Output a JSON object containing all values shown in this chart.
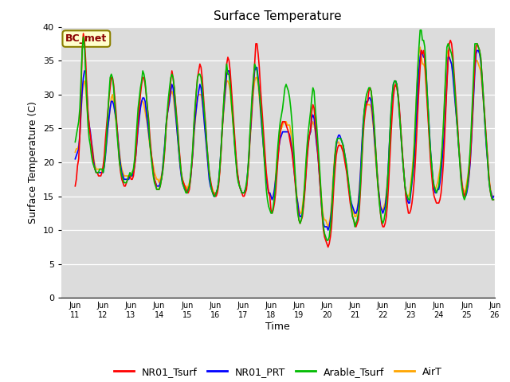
{
  "title": "Surface Temperature",
  "xlabel": "Time",
  "ylabel": "Surface Temperature (C)",
  "annotation": "BC_met",
  "ylim": [
    0,
    40
  ],
  "yticks": [
    0,
    5,
    10,
    15,
    20,
    25,
    30,
    35,
    40
  ],
  "x_labels": [
    "Jun\n11",
    "Jun\n12",
    "Jun\n13",
    "Jun\n14",
    "Jun\n15",
    "Jun\n16",
    "Jun\n17",
    "Jun\n18",
    "Jun\n19",
    "Jun\n20",
    "Jun\n21",
    "Jun\n22",
    "Jun\n23",
    "Jun\n24",
    "Jun\n25",
    "Jun\n26"
  ],
  "x_labels_split": [
    "Jun",
    "11Jun",
    "12Jun",
    "13Jun",
    "14Jun",
    "15Jun",
    "16Jun",
    "17Jun",
    "18Jun",
    "19Jun",
    "20Jun",
    "21Jun",
    "22Jun",
    "23Jun",
    "24Jun",
    "25Jun",
    "26"
  ],
  "series_colors": {
    "NR01_Tsurf": "#ff0000",
    "NR01_PRT": "#0000ff",
    "Arable_Tsurf": "#00bb00",
    "AirT": "#ffa500"
  },
  "bg_color": "#dcdcdc",
  "fig_bg": "#ffffff",
  "line_width": 1.2,
  "NR01_Tsurf": [
    16.5,
    17.5,
    19.5,
    20.5,
    24.0,
    30.5,
    36.5,
    39.0,
    38.0,
    35.0,
    31.0,
    27.5,
    25.5,
    24.0,
    22.5,
    21.0,
    19.5,
    19.0,
    18.5,
    18.5,
    18.0,
    18.0,
    18.0,
    18.5,
    19.5,
    21.0,
    23.5,
    25.5,
    27.5,
    29.5,
    31.0,
    32.5,
    32.5,
    31.5,
    29.5,
    27.5,
    25.0,
    22.5,
    20.0,
    18.5,
    17.5,
    17.0,
    16.5,
    16.5,
    17.0,
    17.5,
    18.0,
    18.0,
    17.5,
    17.5,
    18.0,
    19.5,
    21.0,
    23.5,
    26.0,
    28.0,
    30.0,
    31.5,
    32.5,
    32.5,
    31.5,
    30.0,
    28.0,
    26.5,
    24.0,
    22.0,
    20.0,
    18.5,
    17.5,
    17.0,
    16.0,
    16.0,
    16.0,
    16.5,
    17.5,
    18.5,
    20.0,
    22.0,
    25.0,
    27.0,
    28.5,
    30.0,
    32.0,
    33.5,
    32.5,
    31.0,
    29.0,
    27.0,
    25.0,
    22.5,
    20.5,
    18.5,
    17.5,
    17.0,
    16.5,
    16.0,
    15.5,
    15.5,
    16.0,
    17.5,
    19.5,
    22.0,
    25.5,
    28.0,
    30.5,
    32.5,
    33.5,
    34.5,
    34.0,
    32.5,
    30.0,
    27.5,
    25.5,
    22.5,
    20.5,
    18.5,
    17.5,
    16.5,
    15.5,
    15.5,
    15.0,
    15.0,
    15.5,
    16.5,
    18.5,
    21.0,
    24.5,
    27.5,
    30.0,
    32.5,
    34.5,
    35.5,
    35.0,
    33.5,
    31.0,
    28.5,
    26.0,
    23.5,
    21.0,
    19.0,
    17.5,
    16.5,
    16.0,
    15.5,
    15.0,
    15.0,
    15.5,
    16.0,
    18.0,
    20.5,
    24.0,
    26.5,
    29.5,
    32.0,
    34.5,
    37.5,
    37.5,
    36.0,
    34.0,
    31.0,
    28.5,
    26.0,
    23.5,
    21.0,
    18.5,
    17.0,
    15.5,
    15.0,
    13.0,
    12.5,
    13.0,
    14.0,
    15.5,
    18.0,
    20.5,
    22.5,
    24.5,
    25.5,
    26.0,
    26.0,
    26.0,
    25.5,
    25.0,
    24.5,
    23.5,
    22.5,
    21.5,
    20.0,
    18.5,
    16.5,
    14.5,
    13.0,
    11.5,
    11.0,
    11.5,
    12.0,
    13.5,
    15.5,
    18.0,
    20.5,
    22.5,
    24.0,
    25.0,
    27.5,
    28.5,
    28.0,
    26.0,
    24.0,
    22.0,
    19.5,
    17.0,
    14.5,
    12.0,
    10.0,
    9.0,
    8.5,
    8.0,
    7.5,
    8.0,
    9.0,
    10.5,
    13.5,
    16.5,
    19.0,
    21.0,
    22.0,
    22.5,
    22.5,
    22.5,
    22.0,
    21.5,
    20.5,
    19.5,
    18.5,
    17.0,
    15.5,
    14.0,
    13.0,
    12.0,
    11.5,
    11.0,
    10.5,
    11.0,
    11.5,
    13.5,
    16.5,
    20.0,
    23.5,
    26.0,
    27.5,
    28.5,
    29.0,
    30.5,
    31.0,
    30.5,
    28.5,
    26.5,
    24.0,
    21.5,
    19.0,
    16.5,
    14.5,
    12.5,
    11.0,
    10.5,
    10.5,
    11.0,
    12.0,
    14.0,
    17.0,
    20.5,
    24.0,
    27.0,
    29.5,
    31.0,
    31.5,
    31.0,
    30.0,
    28.5,
    26.0,
    23.5,
    21.0,
    18.5,
    16.5,
    14.5,
    13.5,
    12.5,
    12.5,
    13.0,
    14.0,
    15.5,
    17.5,
    20.5,
    24.0,
    27.5,
    31.0,
    34.0,
    36.5,
    36.0,
    36.5,
    35.0,
    32.0,
    29.0,
    26.0,
    23.0,
    20.0,
    18.0,
    16.0,
    15.0,
    14.5,
    14.0,
    14.0,
    14.0,
    14.5,
    15.5,
    17.5,
    20.0,
    23.5,
    27.5,
    31.5,
    35.0,
    37.5,
    38.0,
    37.5,
    36.0,
    33.5,
    31.0,
    28.5,
    26.0,
    23.0,
    20.5,
    18.0,
    16.5,
    15.5,
    15.0,
    15.5,
    16.0,
    17.0,
    18.5,
    20.5,
    23.5,
    27.0,
    31.0,
    34.5,
    37.0,
    37.5,
    37.0,
    36.5,
    35.5,
    33.0,
    30.5,
    28.0,
    25.5,
    23.0,
    20.5,
    18.0,
    16.0,
    15.0,
    14.5,
    14.5
  ],
  "NR01_PRT": [
    20.5,
    21.0,
    21.5,
    22.0,
    24.0,
    27.5,
    30.5,
    32.5,
    33.5,
    33.5,
    30.5,
    27.0,
    25.5,
    24.5,
    23.0,
    21.5,
    20.0,
    19.0,
    18.5,
    18.5,
    18.5,
    18.5,
    18.5,
    18.5,
    18.5,
    19.5,
    21.0,
    23.0,
    25.0,
    26.5,
    28.0,
    29.0,
    29.0,
    28.5,
    27.5,
    26.5,
    25.0,
    23.0,
    21.0,
    19.5,
    18.5,
    18.0,
    17.5,
    17.5,
    17.5,
    17.5,
    17.5,
    18.0,
    18.0,
    18.0,
    18.5,
    19.5,
    21.0,
    23.0,
    25.0,
    26.5,
    28.0,
    29.0,
    29.5,
    29.5,
    29.0,
    27.5,
    26.0,
    24.5,
    23.0,
    21.5,
    20.0,
    18.5,
    17.5,
    17.0,
    16.5,
    16.5,
    16.5,
    17.0,
    17.5,
    19.0,
    21.0,
    23.0,
    25.5,
    27.0,
    28.0,
    29.0,
    30.5,
    31.5,
    31.0,
    29.5,
    27.5,
    25.5,
    23.5,
    21.5,
    19.5,
    18.0,
    17.0,
    16.5,
    16.0,
    16.0,
    15.5,
    16.0,
    16.5,
    17.5,
    19.5,
    21.5,
    24.5,
    26.5,
    28.0,
    29.5,
    30.5,
    31.5,
    31.0,
    29.5,
    27.5,
    25.5,
    23.5,
    21.5,
    19.5,
    17.5,
    16.5,
    16.0,
    15.5,
    15.0,
    15.0,
    15.5,
    16.0,
    17.0,
    19.0,
    21.5,
    24.5,
    27.0,
    29.0,
    31.0,
    33.0,
    33.5,
    33.5,
    32.0,
    30.0,
    27.5,
    25.0,
    22.5,
    20.5,
    18.5,
    17.5,
    16.5,
    16.0,
    15.5,
    15.5,
    15.5,
    16.0,
    16.5,
    18.5,
    20.5,
    23.5,
    26.0,
    29.0,
    31.5,
    33.5,
    34.0,
    34.0,
    32.5,
    30.5,
    28.0,
    25.5,
    23.5,
    21.5,
    19.5,
    17.5,
    16.5,
    15.5,
    15.5,
    15.0,
    14.5,
    15.0,
    16.0,
    17.5,
    19.0,
    21.0,
    22.5,
    23.5,
    24.0,
    24.5,
    24.5,
    24.5,
    24.5,
    24.5,
    24.5,
    24.0,
    23.0,
    22.0,
    20.5,
    18.5,
    17.0,
    15.0,
    14.0,
    12.5,
    12.0,
    12.0,
    12.5,
    14.0,
    16.0,
    18.5,
    21.0,
    23.0,
    24.0,
    24.5,
    26.5,
    27.0,
    26.5,
    25.0,
    23.0,
    21.5,
    19.5,
    17.0,
    14.5,
    12.5,
    11.0,
    10.5,
    10.5,
    10.5,
    10.0,
    10.5,
    11.5,
    13.0,
    15.5,
    18.5,
    21.0,
    22.5,
    23.5,
    24.0,
    24.0,
    23.5,
    23.0,
    22.5,
    21.5,
    20.5,
    19.0,
    17.5,
    16.0,
    15.0,
    14.0,
    13.5,
    13.0,
    12.5,
    12.5,
    13.0,
    14.0,
    16.0,
    19.0,
    22.5,
    25.5,
    27.5,
    28.5,
    29.0,
    29.0,
    29.5,
    29.5,
    29.0,
    27.5,
    25.5,
    23.0,
    21.0,
    18.5,
    16.5,
    15.0,
    13.5,
    13.0,
    12.5,
    13.0,
    13.5,
    15.0,
    17.0,
    20.5,
    24.0,
    27.0,
    29.5,
    31.5,
    32.0,
    32.0,
    31.5,
    30.0,
    28.0,
    25.5,
    23.0,
    20.5,
    18.5,
    16.5,
    15.0,
    14.5,
    14.0,
    14.0,
    15.5,
    17.0,
    18.5,
    20.5,
    23.5,
    27.0,
    30.5,
    33.5,
    35.5,
    36.5,
    36.0,
    35.5,
    35.5,
    33.5,
    30.5,
    27.5,
    24.5,
    21.5,
    19.5,
    17.5,
    16.0,
    15.5,
    15.5,
    16.0,
    16.0,
    17.0,
    18.5,
    20.5,
    22.5,
    25.0,
    28.5,
    32.0,
    35.5,
    35.5,
    35.0,
    34.5,
    33.0,
    31.0,
    29.0,
    27.0,
    25.0,
    22.5,
    20.5,
    18.5,
    16.5,
    15.5,
    15.0,
    15.0,
    15.5,
    16.5,
    18.0,
    20.0,
    23.0,
    26.5,
    30.0,
    33.5,
    36.0,
    36.5,
    36.5,
    36.0,
    35.0,
    32.5,
    30.0,
    27.5,
    24.5,
    22.0,
    20.0,
    17.5,
    16.0,
    15.5,
    14.5,
    15.0
  ],
  "Arable_Tsurf": [
    23.0,
    24.0,
    25.0,
    26.0,
    28.0,
    32.0,
    36.5,
    38.5,
    37.0,
    33.0,
    29.0,
    25.5,
    23.5,
    22.5,
    21.0,
    20.0,
    19.5,
    19.0,
    18.5,
    18.5,
    18.5,
    19.0,
    19.0,
    19.0,
    18.5,
    19.5,
    21.5,
    24.0,
    27.0,
    30.0,
    32.5,
    33.0,
    32.5,
    31.0,
    28.5,
    26.5,
    24.0,
    22.0,
    20.0,
    19.0,
    18.0,
    17.5,
    17.0,
    17.0,
    17.0,
    17.5,
    18.0,
    18.5,
    18.0,
    18.5,
    19.0,
    20.5,
    23.0,
    25.5,
    28.0,
    29.5,
    31.0,
    32.0,
    33.5,
    33.0,
    32.0,
    30.0,
    28.0,
    26.0,
    23.0,
    21.0,
    19.5,
    18.0,
    17.0,
    16.5,
    16.0,
    16.0,
    16.0,
    16.5,
    17.5,
    18.5,
    20.5,
    22.5,
    25.5,
    27.5,
    29.5,
    31.0,
    32.5,
    33.0,
    32.5,
    31.0,
    28.5,
    26.5,
    24.5,
    22.0,
    20.0,
    18.5,
    17.0,
    16.5,
    16.0,
    15.5,
    15.5,
    16.0,
    16.5,
    18.0,
    20.0,
    22.5,
    26.0,
    28.5,
    30.5,
    32.5,
    33.0,
    33.0,
    32.5,
    31.0,
    29.0,
    27.0,
    25.0,
    22.5,
    20.5,
    18.5,
    17.0,
    16.0,
    15.5,
    15.0,
    15.0,
    15.5,
    16.0,
    17.0,
    19.0,
    21.5,
    24.5,
    27.5,
    30.5,
    33.0,
    34.5,
    33.0,
    33.0,
    31.5,
    29.0,
    27.0,
    24.5,
    22.0,
    20.0,
    18.0,
    17.0,
    16.5,
    16.0,
    15.5,
    15.5,
    15.5,
    16.0,
    17.0,
    18.5,
    21.0,
    24.5,
    27.5,
    30.5,
    32.5,
    34.5,
    34.0,
    33.5,
    32.0,
    30.5,
    28.5,
    26.5,
    24.0,
    21.0,
    18.5,
    16.0,
    14.5,
    13.5,
    13.0,
    12.5,
    12.5,
    13.5,
    15.0,
    17.0,
    20.0,
    22.5,
    24.5,
    26.0,
    27.0,
    28.0,
    29.5,
    31.0,
    31.5,
    31.0,
    30.5,
    29.5,
    28.0,
    26.0,
    23.5,
    20.5,
    17.5,
    14.5,
    12.5,
    11.5,
    11.0,
    11.5,
    12.5,
    14.5,
    17.0,
    20.0,
    22.5,
    24.5,
    26.0,
    27.5,
    29.5,
    31.0,
    30.5,
    28.0,
    26.0,
    23.5,
    21.0,
    18.5,
    15.5,
    12.5,
    10.5,
    9.5,
    9.0,
    8.5,
    8.5,
    9.0,
    10.5,
    12.5,
    15.5,
    18.5,
    21.0,
    23.0,
    23.5,
    23.5,
    23.5,
    23.5,
    23.0,
    22.5,
    21.5,
    20.5,
    19.5,
    18.0,
    16.5,
    15.0,
    13.5,
    12.0,
    11.5,
    10.5,
    11.0,
    11.5,
    12.5,
    14.5,
    17.5,
    21.0,
    24.5,
    27.5,
    29.0,
    30.0,
    30.5,
    31.0,
    31.0,
    30.5,
    29.0,
    27.0,
    24.5,
    21.5,
    18.5,
    16.0,
    14.0,
    12.5,
    11.5,
    11.0,
    11.5,
    12.5,
    14.0,
    17.0,
    20.0,
    24.0,
    27.5,
    30.0,
    31.5,
    32.0,
    32.0,
    31.5,
    30.0,
    27.5,
    25.5,
    23.0,
    20.5,
    18.5,
    16.5,
    15.5,
    15.0,
    14.5,
    14.5,
    16.0,
    17.5,
    19.5,
    22.5,
    26.5,
    30.5,
    34.0,
    37.0,
    39.5,
    39.5,
    38.0,
    38.0,
    37.0,
    34.0,
    30.5,
    27.5,
    24.0,
    21.5,
    19.5,
    17.5,
    16.5,
    16.0,
    15.5,
    16.0,
    16.5,
    18.0,
    20.0,
    22.5,
    25.5,
    29.5,
    33.5,
    37.0,
    37.5,
    37.0,
    36.5,
    36.0,
    35.0,
    32.5,
    30.0,
    27.5,
    25.0,
    22.5,
    20.0,
    17.5,
    16.0,
    15.0,
    14.5,
    15.0,
    16.0,
    17.5,
    19.5,
    22.0,
    25.5,
    29.5,
    33.5,
    37.5,
    37.5,
    37.5,
    37.0,
    36.5,
    35.5,
    33.0,
    30.5,
    27.5,
    25.0,
    22.5,
    20.0,
    17.5,
    16.0,
    15.0,
    14.5,
    14.5
  ],
  "AirT": [
    21.5,
    22.0,
    22.0,
    22.5,
    24.0,
    27.0,
    30.0,
    31.5,
    32.0,
    31.0,
    28.5,
    26.5,
    25.0,
    24.0,
    23.0,
    22.0,
    20.5,
    19.5,
    19.0,
    19.0,
    19.0,
    19.0,
    19.0,
    19.0,
    19.0,
    20.0,
    21.5,
    23.0,
    25.0,
    26.5,
    28.0,
    29.5,
    30.0,
    29.0,
    27.5,
    26.0,
    24.5,
    23.0,
    21.5,
    20.0,
    19.0,
    18.5,
    18.0,
    18.0,
    18.0,
    18.0,
    18.0,
    18.0,
    18.0,
    18.5,
    19.0,
    20.0,
    21.5,
    23.5,
    26.0,
    27.5,
    28.5,
    29.0,
    29.0,
    28.5,
    27.5,
    26.5,
    25.5,
    24.0,
    22.5,
    21.5,
    20.5,
    19.5,
    18.5,
    18.0,
    17.5,
    17.5,
    17.0,
    17.5,
    18.0,
    19.0,
    21.0,
    22.5,
    25.0,
    27.0,
    28.5,
    29.5,
    30.0,
    30.5,
    30.0,
    28.5,
    27.0,
    25.5,
    23.5,
    21.5,
    19.5,
    18.5,
    17.5,
    17.0,
    16.5,
    16.5,
    16.0,
    16.5,
    17.0,
    18.0,
    19.5,
    21.5,
    24.0,
    26.0,
    28.0,
    29.5,
    30.0,
    30.0,
    30.0,
    29.0,
    27.5,
    25.5,
    24.0,
    22.0,
    20.0,
    18.5,
    17.0,
    16.5,
    16.0,
    15.5,
    15.5,
    15.5,
    16.0,
    17.0,
    18.5,
    21.0,
    24.0,
    26.5,
    28.5,
    30.5,
    32.0,
    32.0,
    31.5,
    30.5,
    28.5,
    26.5,
    24.5,
    22.5,
    20.5,
    18.5,
    17.5,
    16.5,
    16.0,
    15.5,
    15.5,
    15.5,
    16.0,
    16.5,
    18.0,
    20.0,
    23.0,
    25.5,
    28.0,
    30.5,
    32.0,
    32.5,
    32.5,
    31.5,
    29.5,
    27.5,
    25.5,
    23.5,
    21.5,
    19.5,
    17.5,
    16.5,
    15.5,
    15.5,
    15.0,
    14.5,
    15.0,
    16.0,
    18.0,
    20.0,
    22.0,
    23.5,
    24.5,
    25.0,
    25.5,
    26.0,
    26.0,
    26.0,
    25.5,
    25.5,
    25.5,
    24.5,
    23.0,
    21.5,
    19.5,
    17.5,
    15.5,
    14.0,
    13.0,
    12.5,
    12.5,
    13.5,
    15.0,
    17.0,
    19.5,
    21.5,
    23.0,
    24.0,
    24.5,
    25.5,
    26.0,
    25.5,
    24.5,
    23.0,
    21.5,
    20.0,
    17.5,
    15.5,
    13.5,
    12.0,
    11.5,
    11.5,
    11.0,
    10.5,
    11.0,
    12.0,
    14.0,
    17.0,
    19.5,
    21.5,
    22.5,
    23.0,
    23.0,
    22.5,
    22.5,
    22.5,
    22.0,
    21.0,
    20.0,
    19.0,
    17.5,
    16.0,
    14.5,
    13.5,
    13.0,
    12.5,
    12.0,
    12.0,
    13.0,
    14.5,
    16.5,
    19.0,
    22.5,
    25.5,
    27.5,
    28.5,
    28.5,
    28.5,
    28.5,
    28.5,
    28.0,
    26.5,
    25.0,
    22.5,
    20.0,
    18.0,
    16.0,
    14.5,
    13.5,
    13.0,
    13.0,
    13.5,
    14.0,
    15.5,
    17.5,
    20.0,
    23.5,
    26.5,
    29.0,
    31.0,
    32.0,
    32.0,
    31.5,
    30.0,
    28.0,
    25.5,
    23.0,
    20.5,
    18.5,
    16.5,
    15.5,
    15.0,
    15.0,
    15.5,
    17.0,
    18.5,
    20.5,
    23.0,
    26.5,
    30.0,
    33.5,
    36.0,
    37.0,
    35.5,
    34.5,
    34.5,
    34.0,
    31.5,
    29.0,
    26.5,
    23.5,
    21.0,
    19.0,
    17.5,
    16.5,
    16.0,
    16.5,
    17.0,
    18.0,
    19.0,
    20.5,
    22.5,
    25.5,
    29.0,
    33.0,
    36.0,
    36.5,
    35.5,
    35.0,
    34.5,
    33.5,
    31.5,
    29.0,
    27.0,
    25.0,
    22.5,
    20.5,
    19.0,
    17.0,
    16.0,
    15.5,
    16.0,
    17.0,
    18.0,
    19.5,
    21.5,
    24.5,
    28.0,
    31.5,
    34.5,
    35.0,
    35.0,
    34.5,
    34.0,
    33.5,
    31.5,
    29.5,
    27.5,
    25.0,
    22.5,
    20.5,
    18.0,
    16.5,
    15.5,
    15.0,
    15.0
  ]
}
